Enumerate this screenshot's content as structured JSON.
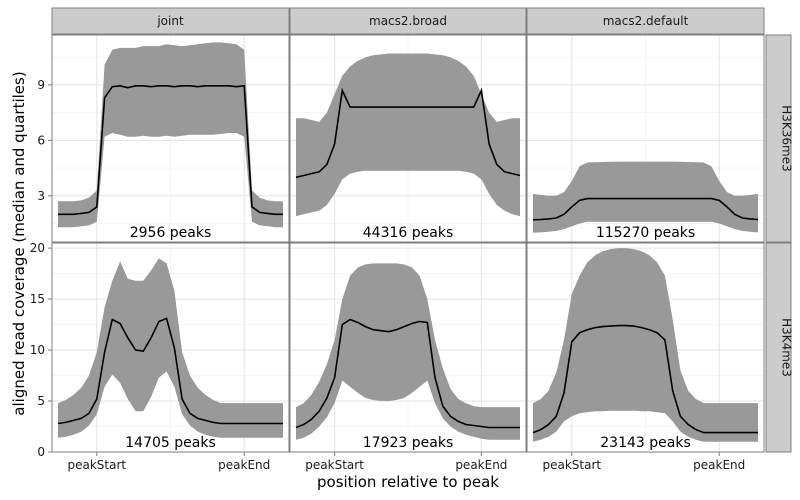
{
  "chart_data": {
    "type": "area",
    "xlabel": "position relative to peak",
    "ylabel": "aligned read coverage (median and quartiles)",
    "x_ticks": [
      "peakStart",
      "peakEnd"
    ],
    "columns": [
      "joint",
      "macs2.broad",
      "macs2.default"
    ],
    "rows": [
      "H3K36me3",
      "H3K4me3"
    ],
    "ylims": {
      "H3K36me3": [
        0.5,
        11.7
      ],
      "H3K4me3": [
        0,
        20.5
      ]
    },
    "y_ticks": {
      "H3K36me3": [
        3,
        6,
        9
      ],
      "H3K4me3": [
        0,
        5,
        10,
        15,
        20
      ]
    },
    "grid": true,
    "x_note": "30 evenly spaced positions; peakStart at index 5, peakEnd at index 24",
    "panels": [
      {
        "row": "H3K36me3",
        "col": "joint",
        "annotation": "2956 peaks",
        "median": [
          2.0,
          2.0,
          2.0,
          2.05,
          2.1,
          2.4,
          8.3,
          8.9,
          8.95,
          8.85,
          8.95,
          8.95,
          8.9,
          8.95,
          8.95,
          8.9,
          8.95,
          8.95,
          8.9,
          8.95,
          8.95,
          8.95,
          8.95,
          8.9,
          8.95,
          2.4,
          2.1,
          2.05,
          2.0,
          2.0
        ],
        "q1": [
          1.3,
          1.3,
          1.3,
          1.35,
          1.4,
          1.6,
          6.2,
          6.4,
          6.3,
          6.2,
          6.2,
          6.25,
          6.2,
          6.2,
          6.25,
          6.2,
          6.25,
          6.3,
          6.3,
          6.3,
          6.3,
          6.35,
          6.4,
          6.4,
          6.2,
          1.6,
          1.4,
          1.35,
          1.3,
          1.3
        ],
        "q3": [
          2.7,
          2.7,
          2.7,
          2.75,
          2.9,
          3.3,
          10.1,
          10.9,
          11.0,
          11.0,
          11.0,
          11.1,
          11.1,
          11.1,
          11.2,
          11.15,
          11.1,
          11.15,
          11.2,
          11.25,
          11.3,
          11.3,
          11.25,
          11.2,
          10.9,
          3.3,
          2.9,
          2.75,
          2.7,
          2.7
        ]
      },
      {
        "row": "H3K36me3",
        "col": "macs2.broad",
        "annotation": "44316 peaks",
        "median": [
          4.0,
          4.1,
          4.2,
          4.3,
          4.7,
          5.8,
          8.7,
          7.8,
          7.8,
          7.8,
          7.8,
          7.8,
          7.8,
          7.8,
          7.8,
          7.8,
          7.8,
          7.8,
          7.8,
          7.8,
          7.8,
          7.8,
          7.8,
          7.8,
          8.7,
          5.8,
          4.7,
          4.3,
          4.2,
          4.1
        ],
        "q1": [
          1.9,
          2.0,
          2.1,
          2.2,
          2.5,
          3.1,
          3.9,
          4.2,
          4.3,
          4.35,
          4.35,
          4.35,
          4.35,
          4.35,
          4.35,
          4.35,
          4.35,
          4.35,
          4.35,
          4.35,
          4.35,
          4.35,
          4.3,
          4.2,
          3.9,
          3.1,
          2.5,
          2.2,
          2.0,
          1.9
        ],
        "q3": [
          7.2,
          7.2,
          7.1,
          7.0,
          7.5,
          8.5,
          9.5,
          10.0,
          10.3,
          10.5,
          10.6,
          10.65,
          10.7,
          10.7,
          10.7,
          10.7,
          10.7,
          10.7,
          10.65,
          10.6,
          10.5,
          10.3,
          10.0,
          9.5,
          8.5,
          7.5,
          7.0,
          7.1,
          7.2,
          7.2
        ]
      },
      {
        "row": "H3K36me3",
        "col": "macs2.default",
        "annotation": "115270 peaks",
        "median": [
          1.7,
          1.72,
          1.75,
          1.8,
          2.0,
          2.4,
          2.75,
          2.85,
          2.85,
          2.85,
          2.85,
          2.85,
          2.85,
          2.85,
          2.85,
          2.85,
          2.85,
          2.85,
          2.85,
          2.85,
          2.85,
          2.85,
          2.85,
          2.85,
          2.75,
          2.4,
          2.0,
          1.8,
          1.75,
          1.72
        ],
        "q1": [
          1.0,
          1.02,
          1.05,
          1.1,
          1.2,
          1.35,
          1.5,
          1.6,
          1.6,
          1.6,
          1.6,
          1.6,
          1.6,
          1.6,
          1.6,
          1.6,
          1.6,
          1.6,
          1.6,
          1.6,
          1.6,
          1.6,
          1.6,
          1.6,
          1.5,
          1.35,
          1.2,
          1.1,
          1.05,
          1.02
        ],
        "q3": [
          3.1,
          3.05,
          3.0,
          3.0,
          3.2,
          3.8,
          4.6,
          4.8,
          4.82,
          4.83,
          4.84,
          4.85,
          4.85,
          4.85,
          4.85,
          4.85,
          4.85,
          4.85,
          4.85,
          4.84,
          4.83,
          4.82,
          4.8,
          4.6,
          3.8,
          3.2,
          3.0,
          3.0,
          3.05,
          3.1
        ]
      },
      {
        "row": "H3K4me3",
        "col": "joint",
        "annotation": "14705 peaks",
        "median": [
          2.8,
          2.9,
          3.1,
          3.3,
          3.8,
          5.2,
          9.8,
          13.0,
          12.6,
          11.2,
          10.0,
          9.9,
          11.2,
          12.8,
          13.1,
          10.2,
          5.2,
          3.8,
          3.3,
          3.1,
          2.9,
          2.8,
          2.8,
          2.8,
          2.8,
          2.8,
          2.8,
          2.8,
          2.8,
          2.8
        ],
        "q1": [
          1.4,
          1.5,
          1.7,
          2.0,
          2.6,
          3.7,
          6.4,
          7.6,
          6.8,
          5.2,
          4.0,
          4.0,
          5.4,
          7.3,
          7.9,
          6.4,
          3.7,
          2.6,
          2.0,
          1.7,
          1.5,
          1.4,
          1.4,
          1.4,
          1.4,
          1.4,
          1.4,
          1.4,
          1.4,
          1.4
        ],
        "q3": [
          4.8,
          5.1,
          5.6,
          6.3,
          7.5,
          9.8,
          14.2,
          16.8,
          18.7,
          17.0,
          16.8,
          16.8,
          17.8,
          19.0,
          18.5,
          15.8,
          9.8,
          7.5,
          6.3,
          5.6,
          5.1,
          4.8,
          4.8,
          4.8,
          4.8,
          4.8,
          4.8,
          4.8,
          4.8,
          4.8
        ]
      },
      {
        "row": "H3K4me3",
        "col": "macs2.broad",
        "annotation": "17923 peaks",
        "median": [
          2.4,
          2.7,
          3.2,
          4.0,
          5.3,
          7.3,
          12.5,
          13.0,
          12.7,
          12.3,
          12.0,
          11.9,
          11.8,
          12.0,
          12.3,
          12.6,
          12.8,
          12.7,
          7.3,
          4.5,
          3.5,
          3.0,
          2.7,
          2.6,
          2.5,
          2.4,
          2.4,
          2.4,
          2.4,
          2.4
        ],
        "q1": [
          1.2,
          1.4,
          1.8,
          2.5,
          3.4,
          4.8,
          7.0,
          6.4,
          5.8,
          5.3,
          5.1,
          5.0,
          5.0,
          5.1,
          5.3,
          5.8,
          6.4,
          7.0,
          4.8,
          3.3,
          2.5,
          2.0,
          1.7,
          1.5,
          1.3,
          1.2,
          1.2,
          1.2,
          1.2,
          1.2
        ],
        "q3": [
          4.4,
          4.8,
          5.6,
          6.9,
          8.6,
          11.0,
          15.0,
          17.3,
          18.1,
          18.4,
          18.5,
          18.5,
          18.5,
          18.5,
          18.4,
          18.1,
          17.3,
          15.0,
          11.0,
          8.2,
          6.2,
          5.2,
          4.8,
          4.5,
          4.4,
          4.4,
          4.4,
          4.4,
          4.4,
          4.4
        ]
      },
      {
        "row": "H3K4me3",
        "col": "macs2.default",
        "annotation": "23143 peaks",
        "median": [
          1.9,
          2.2,
          2.7,
          3.5,
          5.8,
          10.8,
          11.7,
          12.0,
          12.2,
          12.3,
          12.35,
          12.4,
          12.4,
          12.35,
          12.2,
          12.0,
          11.7,
          11.0,
          6.0,
          3.5,
          2.7,
          2.2,
          1.9,
          1.9,
          1.9,
          1.9,
          1.9,
          1.9,
          1.9,
          1.9
        ],
        "q1": [
          1.0,
          1.2,
          1.5,
          2.0,
          3.0,
          3.5,
          3.8,
          3.9,
          4.0,
          4.0,
          4.05,
          4.05,
          4.05,
          4.05,
          4.0,
          4.0,
          3.9,
          3.8,
          3.0,
          2.0,
          1.5,
          1.2,
          1.0,
          1.0,
          1.0,
          1.0,
          1.0,
          1.0,
          1.0,
          1.0
        ],
        "q3": [
          4.8,
          5.2,
          6.0,
          7.8,
          11.0,
          15.5,
          17.3,
          18.6,
          19.3,
          19.7,
          19.9,
          20.0,
          20.0,
          19.9,
          19.7,
          19.3,
          18.6,
          17.3,
          13.0,
          8.0,
          6.0,
          5.2,
          4.8,
          4.8,
          4.8,
          4.8,
          4.8,
          4.8,
          4.8,
          4.8
        ]
      }
    ]
  }
}
